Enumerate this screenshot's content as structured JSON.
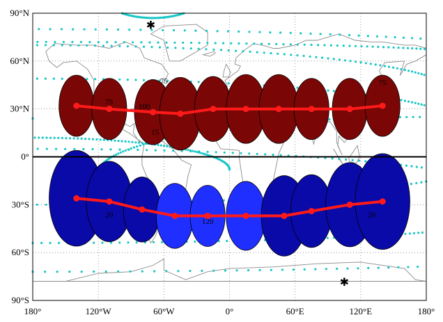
{
  "chart_data": {
    "type": "scatter",
    "title": "",
    "xlabel": "",
    "ylabel": "",
    "xlim": [
      -180,
      180
    ],
    "ylim": [
      -90,
      90
    ],
    "grid": true,
    "x_ticks": [
      "180°",
      "120°W",
      "60°W",
      "0°",
      "60°E",
      "120°E",
      "180°"
    ],
    "y_ticks": [
      "90°N",
      "60°N",
      "30°N",
      "0°",
      "30°S",
      "60°S",
      "90°S"
    ],
    "colors": {
      "north_fill": "#7a0606",
      "south_fill_dark": "#0a0aa8",
      "south_fill_light": "#1f2fff",
      "track": "#ff1a1a",
      "dotted": "#19c6c6",
      "coast": "#8a8a8a",
      "equator": "#000000"
    },
    "series": [
      {
        "hemisphere": "north",
        "lon": [
          -140,
          -110,
          -70,
          -45,
          -15,
          15,
          45,
          75,
          110,
          140
        ],
        "lat": [
          32,
          30,
          28,
          27,
          30,
          30,
          30,
          30,
          30,
          32
        ],
        "radius_deg": [
          16,
          16,
          17,
          19,
          17,
          18,
          18,
          16,
          16,
          16
        ]
      },
      {
        "hemisphere": "south",
        "lon": [
          -140,
          -110,
          -80,
          -50,
          -20,
          15,
          50,
          75,
          110,
          140
        ],
        "lat": [
          -26,
          -28,
          -33,
          -37,
          -37,
          -37,
          -37,
          -34,
          -30,
          -28
        ],
        "radius_deg": [
          25,
          21,
          17,
          17,
          16,
          18,
          21,
          19,
          22,
          25
        ]
      }
    ],
    "annotations": [
      {
        "text": "75",
        "lon": -60,
        "lat": 46
      },
      {
        "text": "75",
        "lon": -110,
        "lat": 33
      },
      {
        "text": "100",
        "lon": -78,
        "lat": 30
      },
      {
        "text": "15",
        "lon": -68,
        "lat": 14
      },
      {
        "text": "75",
        "lon": 140,
        "lat": 45
      },
      {
        "text": "20",
        "lon": -110,
        "lat": -38
      },
      {
        "text": "120",
        "lon": -20,
        "lat": -42
      },
      {
        "text": "20",
        "lon": 130,
        "lat": -38
      }
    ],
    "stars": [
      {
        "lon": -72,
        "lat": 82
      },
      {
        "lon": 105,
        "lat": -79
      }
    ]
  }
}
